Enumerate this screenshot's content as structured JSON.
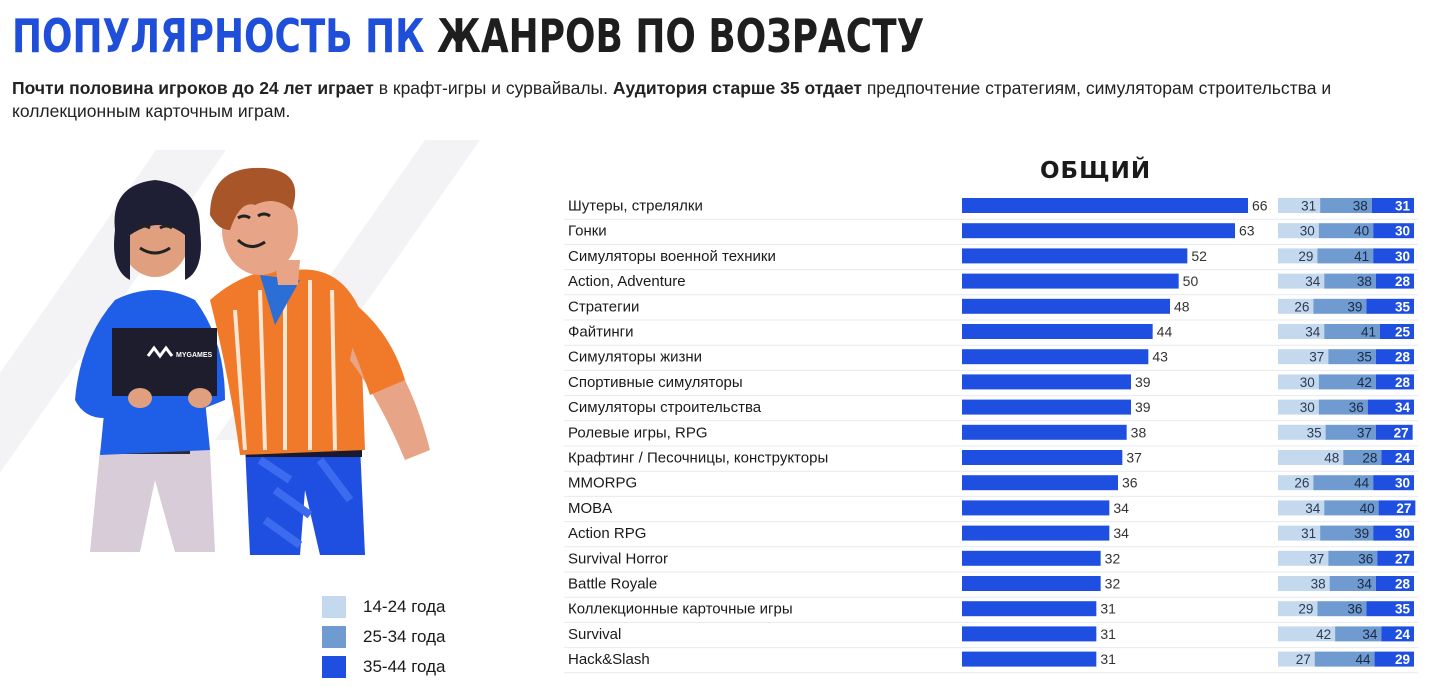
{
  "header": {
    "title_part1": "ПОПУЛЯРНОСТЬ ПК",
    "title_part2": "ЖАНРОВ ПО ВОЗРАСТУ",
    "subtitle_bold1": "Почти половина игроков до 24 лет играет",
    "subtitle_text1": " в крафт-игры и сурвайвалы. ",
    "subtitle_bold2": "Аудитория старше 35 отдает",
    "subtitle_text2": " предпочтение стратегиям, симуляторам строительства и коллекционным карточным играм."
  },
  "illustration": {
    "laptop_brand": "MYGAMES"
  },
  "colors": {
    "total_bar": "#1f4fe0",
    "age_14_24": "#c5d9ee",
    "age_25_34": "#6f9bd1",
    "age_35_44": "#1f4fe0",
    "title_blue": "#1f4fd8"
  },
  "legend": [
    {
      "label": "14-24 года",
      "color": "#c5d9ee"
    },
    {
      "label": "25-34 года",
      "color": "#6f9bd1"
    },
    {
      "label": "35-44 года",
      "color": "#1f4fe0"
    }
  ],
  "chart_data": {
    "type": "bar",
    "title": "ОБЩИЙ",
    "categories": [
      "Шутеры, стрелялки",
      "Гонки",
      "Симуляторы военной техники",
      "Action, Adventure",
      "Стратегии",
      "Файтинги",
      "Симуляторы жизни",
      "Спортивные симуляторы",
      "Симуляторы строительства",
      "Ролевые игры, RPG",
      "Крафтинг / Песочницы, конструкторы",
      "MMORPG",
      "MOBA",
      "Action RPG",
      "Survival Horror",
      "Battle Royale",
      "Коллекционные карточные игры",
      "Survival",
      "Hack&Slash"
    ],
    "total": [
      66,
      63,
      52,
      50,
      48,
      44,
      43,
      39,
      39,
      38,
      37,
      36,
      34,
      34,
      32,
      32,
      31,
      31,
      31
    ],
    "series": [
      {
        "name": "14-24 года",
        "values": [
          31,
          30,
          29,
          34,
          26,
          34,
          37,
          30,
          30,
          35,
          48,
          26,
          34,
          31,
          37,
          38,
          29,
          42,
          27
        ]
      },
      {
        "name": "25-34 года",
        "values": [
          38,
          40,
          41,
          38,
          39,
          41,
          35,
          42,
          36,
          37,
          28,
          44,
          40,
          39,
          36,
          34,
          36,
          34,
          44
        ]
      },
      {
        "name": "35-44 года",
        "values": [
          31,
          30,
          30,
          28,
          35,
          25,
          28,
          28,
          34,
          27,
          24,
          30,
          27,
          30,
          27,
          28,
          35,
          24,
          29
        ]
      }
    ],
    "xlim": [
      0,
      66
    ],
    "grid": false
  }
}
